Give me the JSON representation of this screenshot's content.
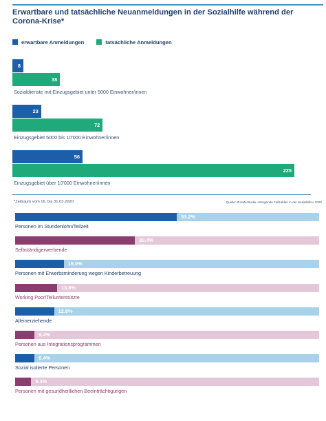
{
  "colors": {
    "expected": "#1c5ea8",
    "actual": "#1faa7b",
    "blue_track": "#a8d2ea",
    "purple_bar": "#8a3d6e",
    "purple_track": "#e4c7d9",
    "title": "#1f3f6a",
    "rule": "#3a94c7"
  },
  "header": {
    "title": "Erwartbare und tatsächliche Neuanmeldungen in der Sozialhilfe während der Corona-Krise*"
  },
  "legend": {
    "expected_label": "erwartbare Anmeldungen",
    "actual_label": "tatsächliche Anmeldungen"
  },
  "footer": {
    "note": "*Zeitraum vom 16. bis 31.03.2020",
    "source": "Quelle: ZHAW-Studie «Steigende Fallzahlen in der Sozialhilfe» 2020"
  },
  "chart_data": [
    {
      "type": "bar",
      "orientation": "horizontal",
      "categories": [
        "Sozialdienste mit Einzugsgebiet unter 5000 Einwohner/innen",
        "Einzugsgebiet 5000 bis 10'000 Einwohner/innen",
        "Einzugsgebiet über 10'000 Einwohner/innen"
      ],
      "series": [
        {
          "name": "erwartbare Anmeldungen",
          "values": [
            8,
            23,
            56
          ]
        },
        {
          "name": "tatsächliche Anmeldungen",
          "values": [
            38,
            72,
            225
          ]
        }
      ],
      "xlim": [
        0,
        225
      ],
      "legend": "top-left",
      "grid": false
    },
    {
      "type": "bar",
      "orientation": "horizontal",
      "categories": [
        "Personen im Stundenlohn/Teilzeit",
        "Selbständigerwerbende",
        "Personen mit Erwerbsminderung wegen Kinderbetreuung",
        "Working Poor/Teilunterstützte",
        "Alleinerziehende",
        "Personen aus Integrationsprogrammen",
        "Sozial isolierte Personen",
        "Personen mit gesundheitlichen Beeinträchtigungen"
      ],
      "values": [
        53.2,
        39.4,
        16.0,
        13.8,
        12.8,
        6.4,
        6.4,
        5.3
      ],
      "value_labels": [
        "53.2%",
        "39.4%",
        "16.0%",
        "13.8%",
        "12.8%",
        "6.4%",
        "6.4%",
        "5.3%"
      ],
      "bar_colors": [
        "blue",
        "purple",
        "blue",
        "purple",
        "blue",
        "purple",
        "blue",
        "purple"
      ],
      "xlim": [
        0,
        100
      ],
      "grid": false
    }
  ]
}
